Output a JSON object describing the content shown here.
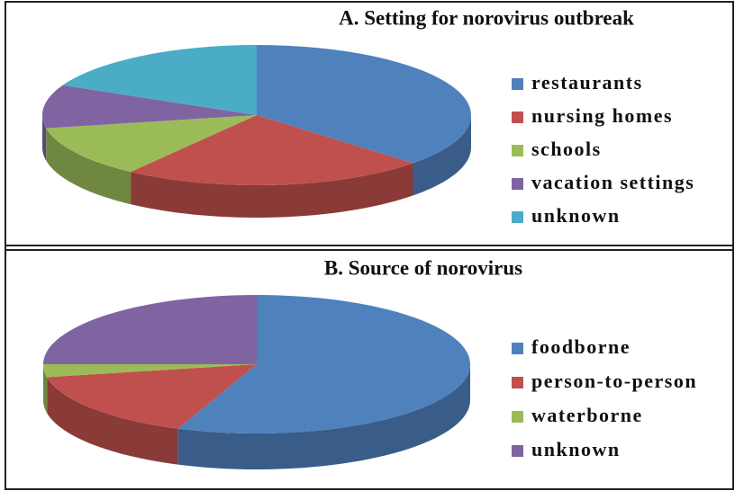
{
  "chart_data": [
    {
      "type": "pie",
      "title": "A. Setting for norovirus outbreak",
      "categories": [
        "restaurants",
        "nursing homes",
        "schools",
        "vacation settings",
        "unknown"
      ],
      "values": [
        37,
        23,
        12,
        10,
        18
      ],
      "colors": [
        "#4f81bd",
        "#c0504d",
        "#9bbb59",
        "#8064a2",
        "#4bacc6"
      ]
    },
    {
      "type": "pie",
      "title": "B. Source of norovirus",
      "categories": [
        "foodborne",
        "person-to-person",
        "waterborne",
        "unknown"
      ],
      "values": [
        56,
        16,
        3,
        25
      ],
      "colors": [
        "#4f81bd",
        "#c0504d",
        "#9bbb59",
        "#8064a2"
      ]
    }
  ]
}
